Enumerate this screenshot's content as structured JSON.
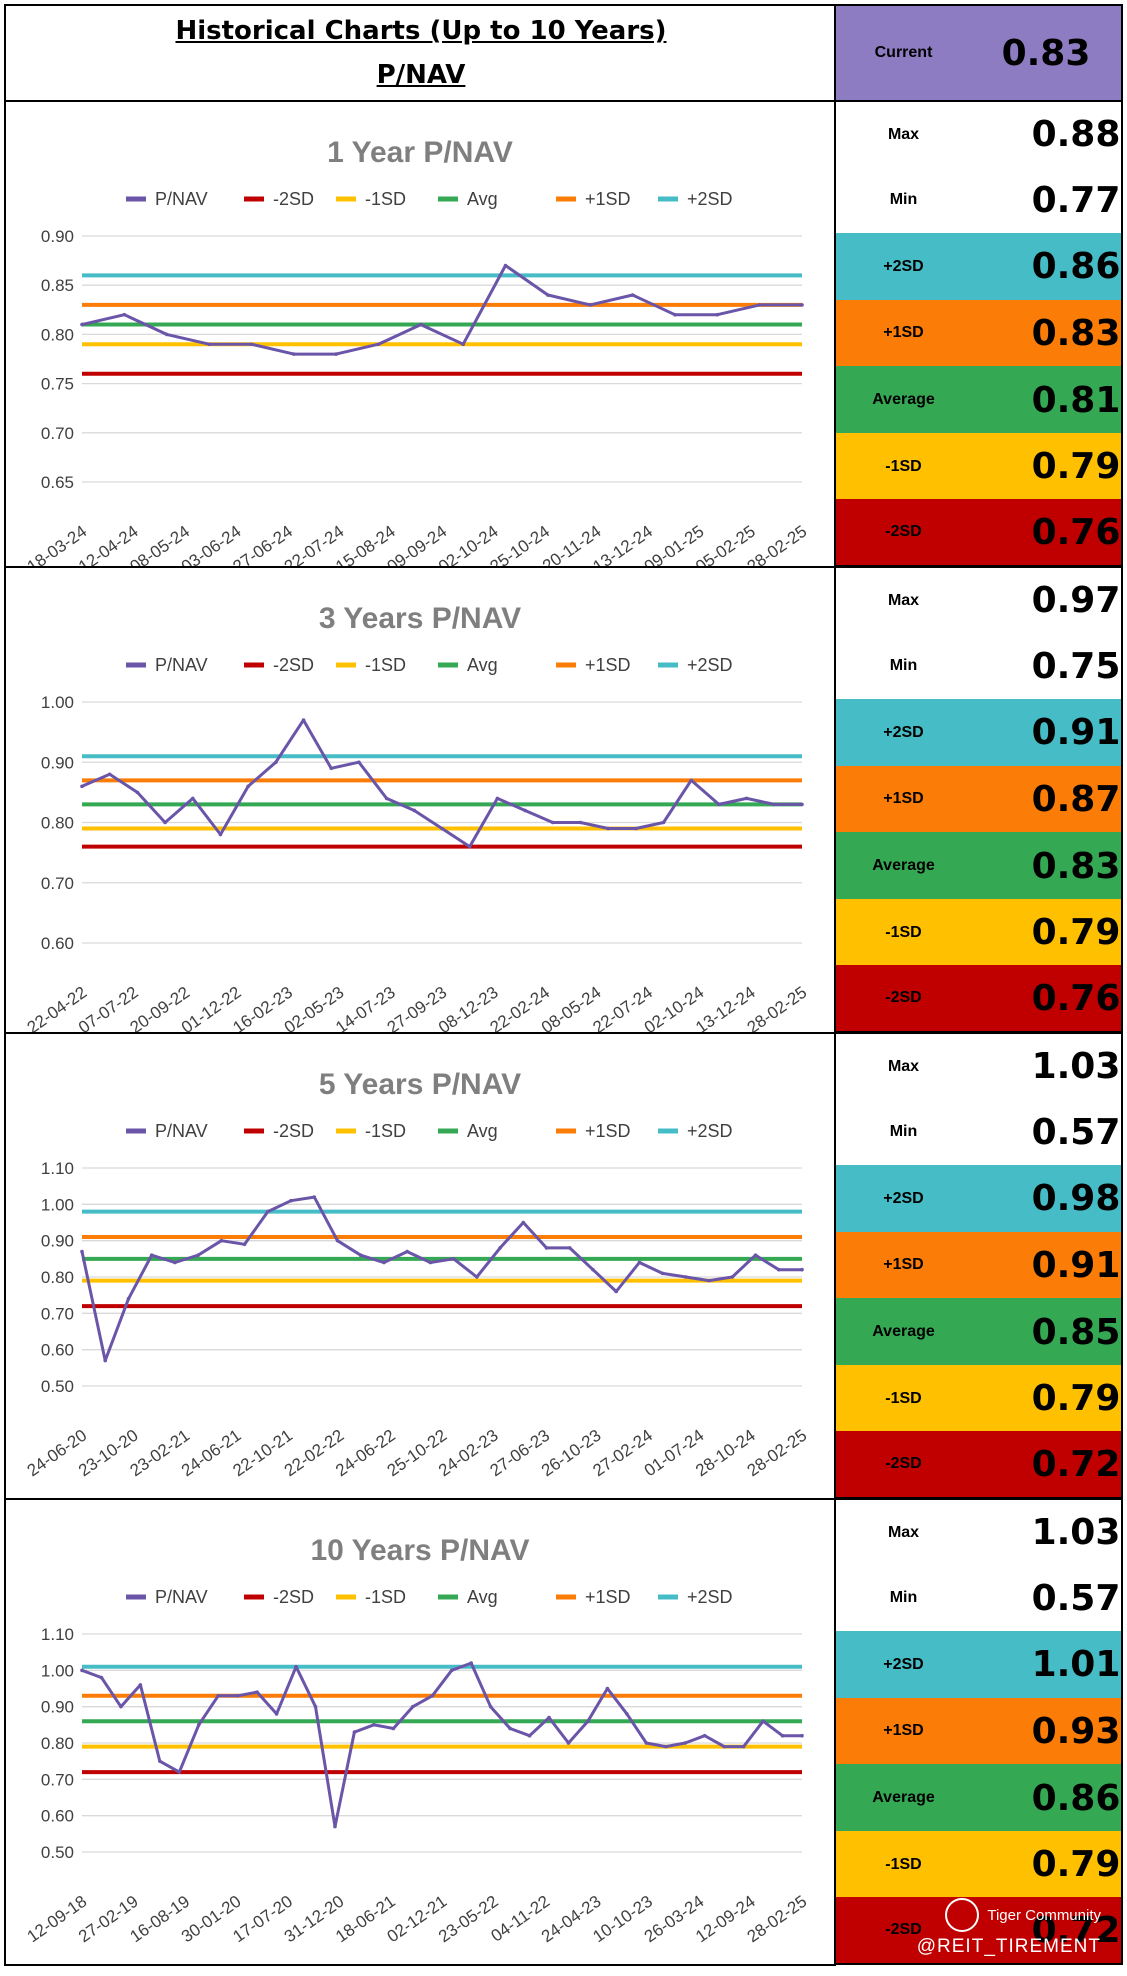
{
  "header": {
    "title": "Historical Charts (Up to 10 Years)",
    "subtitle": "P/NAV",
    "current_label": "Current",
    "current_value": "0.83"
  },
  "colors": {
    "pnav": "#6a55a8",
    "minus2sd": "#c00000",
    "minus1sd": "#ffc000",
    "avg": "#34a853",
    "plus1sd": "#fb7d07",
    "plus2sd": "#46bdc6",
    "current_bg": "#8e7cc3",
    "white_bg": "#ffffff",
    "grid": "#d9d9d9"
  },
  "legend": [
    "P/NAV",
    "-2SD",
    "-1SD",
    "Avg",
    "+1SD",
    "+2SD"
  ],
  "panels": [
    {
      "title": "1 Year P/NAV",
      "stats": [
        {
          "label": "Max",
          "value": "0.88",
          "bg": "white_bg"
        },
        {
          "label": "Min",
          "value": "0.77",
          "bg": "white_bg"
        },
        {
          "label": "+2SD",
          "value": "0.86",
          "bg": "plus2sd"
        },
        {
          "label": "+1SD",
          "value": "0.83",
          "bg": "plus1sd"
        },
        {
          "label": "Average",
          "value": "0.81",
          "bg": "avg"
        },
        {
          "label": "-1SD",
          "value": "0.79",
          "bg": "minus1sd"
        },
        {
          "label": "-2SD",
          "value": "0.76",
          "bg": "minus2sd"
        }
      ]
    },
    {
      "title": "3 Years P/NAV",
      "stats": [
        {
          "label": "Max",
          "value": "0.97",
          "bg": "white_bg"
        },
        {
          "label": "Min",
          "value": "0.75",
          "bg": "white_bg"
        },
        {
          "label": "+2SD",
          "value": "0.91",
          "bg": "plus2sd"
        },
        {
          "label": "+1SD",
          "value": "0.87",
          "bg": "plus1sd"
        },
        {
          "label": "Average",
          "value": "0.83",
          "bg": "avg"
        },
        {
          "label": "-1SD",
          "value": "0.79",
          "bg": "minus1sd"
        },
        {
          "label": "-2SD",
          "value": "0.76",
          "bg": "minus2sd"
        }
      ]
    },
    {
      "title": "5 Years P/NAV",
      "stats": [
        {
          "label": "Max",
          "value": "1.03",
          "bg": "white_bg"
        },
        {
          "label": "Min",
          "value": "0.57",
          "bg": "white_bg"
        },
        {
          "label": "+2SD",
          "value": "0.98",
          "bg": "plus2sd"
        },
        {
          "label": "+1SD",
          "value": "0.91",
          "bg": "plus1sd"
        },
        {
          "label": "Average",
          "value": "0.85",
          "bg": "avg"
        },
        {
          "label": "-1SD",
          "value": "0.79",
          "bg": "minus1sd"
        },
        {
          "label": "-2SD",
          "value": "0.72",
          "bg": "minus2sd"
        }
      ]
    },
    {
      "title": "10 Years P/NAV",
      "stats": [
        {
          "label": "Max",
          "value": "1.03",
          "bg": "white_bg"
        },
        {
          "label": "Min",
          "value": "0.57",
          "bg": "white_bg"
        },
        {
          "label": "+2SD",
          "value": "1.01",
          "bg": "plus2sd"
        },
        {
          "label": "+1SD",
          "value": "0.93",
          "bg": "plus1sd"
        },
        {
          "label": "Average",
          "value": "0.86",
          "bg": "avg"
        },
        {
          "label": "-1SD",
          "value": "0.79",
          "bg": "minus1sd"
        },
        {
          "label": "-2SD",
          "value": "0.72",
          "bg": "minus2sd"
        }
      ]
    }
  ],
  "watermark": {
    "brand": "Tiger Community",
    "handle": "@REIT_TIREMENT"
  },
  "chart_data": [
    {
      "type": "line",
      "title": "1 Year P/NAV",
      "yticks": [
        "0.90",
        "0.85",
        "0.80",
        "0.75",
        "0.70",
        "0.65"
      ],
      "ylim": [
        0.65,
        0.9
      ],
      "grid": true,
      "legend_position": "top",
      "x_ticks": [
        "18-03-24",
        "12-04-24",
        "08-05-24",
        "03-06-24",
        "27-06-24",
        "22-07-24",
        "15-08-24",
        "09-09-24",
        "02-10-24",
        "25-10-24",
        "20-11-24",
        "13-12-24",
        "09-01-25",
        "05-02-25",
        "28-02-25"
      ],
      "series": [
        {
          "name": "P/NAV",
          "values": [
            0.81,
            0.82,
            0.8,
            0.79,
            0.79,
            0.78,
            0.78,
            0.79,
            0.81,
            0.79,
            0.87,
            0.84,
            0.83,
            0.84,
            0.82,
            0.82,
            0.83,
            0.83
          ]
        },
        {
          "name": "-2SD",
          "values": [
            0.76,
            0.76
          ]
        },
        {
          "name": "-1SD",
          "values": [
            0.79,
            0.79
          ]
        },
        {
          "name": "Avg",
          "values": [
            0.81,
            0.81
          ]
        },
        {
          "name": "+1SD",
          "values": [
            0.83,
            0.83
          ]
        },
        {
          "name": "+2SD",
          "values": [
            0.86,
            0.86
          ]
        }
      ]
    },
    {
      "type": "line",
      "title": "3 Years P/NAV",
      "yticks": [
        "1.00",
        "0.90",
        "0.80",
        "0.70",
        "0.60"
      ],
      "ylim": [
        0.6,
        1.0
      ],
      "grid": true,
      "legend_position": "top",
      "x_ticks": [
        "22-04-22",
        "07-07-22",
        "20-09-22",
        "01-12-22",
        "16-02-23",
        "02-05-23",
        "14-07-23",
        "27-09-23",
        "08-12-23",
        "22-02-24",
        "08-05-24",
        "22-07-24",
        "02-10-24",
        "13-12-24",
        "28-02-25"
      ],
      "series": [
        {
          "name": "P/NAV",
          "values": [
            0.86,
            0.88,
            0.85,
            0.8,
            0.84,
            0.78,
            0.86,
            0.9,
            0.97,
            0.89,
            0.9,
            0.84,
            0.82,
            0.79,
            0.76,
            0.84,
            0.82,
            0.8,
            0.8,
            0.79,
            0.79,
            0.8,
            0.87,
            0.83,
            0.84,
            0.83,
            0.83
          ]
        },
        {
          "name": "-2SD",
          "values": [
            0.76,
            0.76
          ]
        },
        {
          "name": "-1SD",
          "values": [
            0.79,
            0.79
          ]
        },
        {
          "name": "Avg",
          "values": [
            0.83,
            0.83
          ]
        },
        {
          "name": "+1SD",
          "values": [
            0.87,
            0.87
          ]
        },
        {
          "name": "+2SD",
          "values": [
            0.91,
            0.91
          ]
        }
      ]
    },
    {
      "type": "line",
      "title": "5 Years P/NAV",
      "yticks": [
        "1.10",
        "1.00",
        "0.90",
        "0.80",
        "0.70",
        "0.60",
        "0.50"
      ],
      "ylim": [
        0.5,
        1.1
      ],
      "grid": true,
      "legend_position": "top",
      "x_ticks": [
        "24-06-20",
        "23-10-20",
        "23-02-21",
        "24-06-21",
        "22-10-21",
        "22-02-22",
        "24-06-22",
        "25-10-22",
        "24-02-23",
        "27-06-23",
        "26-10-23",
        "27-02-24",
        "01-07-24",
        "28-10-24",
        "28-02-25"
      ],
      "series": [
        {
          "name": "P/NAV",
          "values": [
            0.87,
            0.57,
            0.74,
            0.86,
            0.84,
            0.86,
            0.9,
            0.89,
            0.98,
            1.01,
            1.02,
            0.9,
            0.86,
            0.84,
            0.87,
            0.84,
            0.85,
            0.8,
            0.88,
            0.95,
            0.88,
            0.88,
            0.82,
            0.76,
            0.84,
            0.81,
            0.8,
            0.79,
            0.8,
            0.86,
            0.82,
            0.82
          ]
        },
        {
          "name": "-2SD",
          "values": [
            0.72,
            0.72
          ]
        },
        {
          "name": "-1SD",
          "values": [
            0.79,
            0.79
          ]
        },
        {
          "name": "Avg",
          "values": [
            0.85,
            0.85
          ]
        },
        {
          "name": "+1SD",
          "values": [
            0.91,
            0.91
          ]
        },
        {
          "name": "+2SD",
          "values": [
            0.98,
            0.98
          ]
        }
      ]
    },
    {
      "type": "line",
      "title": "10 Years P/NAV",
      "yticks": [
        "1.10",
        "1.00",
        "0.90",
        "0.80",
        "0.70",
        "0.60",
        "0.50"
      ],
      "ylim": [
        0.5,
        1.1
      ],
      "grid": true,
      "legend_position": "top",
      "x_ticks": [
        "12-09-18",
        "27-02-19",
        "16-08-19",
        "30-01-20",
        "17-07-20",
        "31-12-20",
        "18-06-21",
        "02-12-21",
        "23-05-22",
        "04-11-22",
        "24-04-23",
        "10-10-23",
        "26-03-24",
        "12-09-24",
        "28-02-25"
      ],
      "series": [
        {
          "name": "P/NAV",
          "values": [
            1.0,
            0.98,
            0.9,
            0.96,
            0.75,
            0.72,
            0.85,
            0.93,
            0.93,
            0.94,
            0.88,
            1.01,
            0.9,
            0.57,
            0.83,
            0.85,
            0.84,
            0.9,
            0.93,
            1.0,
            1.02,
            0.9,
            0.84,
            0.82,
            0.87,
            0.8,
            0.86,
            0.95,
            0.88,
            0.8,
            0.79,
            0.8,
            0.82,
            0.79,
            0.79,
            0.86,
            0.82,
            0.82
          ]
        },
        {
          "name": "-2SD",
          "values": [
            0.72,
            0.72
          ]
        },
        {
          "name": "-1SD",
          "values": [
            0.79,
            0.79
          ]
        },
        {
          "name": "Avg",
          "values": [
            0.86,
            0.86
          ]
        },
        {
          "name": "+1SD",
          "values": [
            0.93,
            0.93
          ]
        },
        {
          "name": "+2SD",
          "values": [
            1.01,
            1.01
          ]
        }
      ]
    }
  ]
}
